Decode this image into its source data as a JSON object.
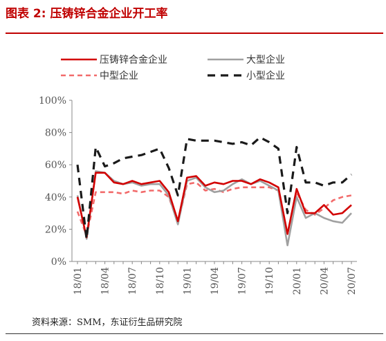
{
  "header": {
    "title": "图表 2:  压铸锌合金企业开工率"
  },
  "footer": {
    "source": "资料来源：SMM，东证衍生品研究院"
  },
  "colors": {
    "title": "#c00000",
    "overall": "#d20000",
    "large": "#a0a0a0",
    "medium": "#f26a6a",
    "small": "#1a1a1a"
  },
  "chart_data": {
    "type": "line",
    "title": "",
    "ylim": [
      0,
      100
    ],
    "y_ticks": [
      "0%",
      "20%",
      "40%",
      "60%",
      "80%",
      "100%"
    ],
    "y_tick_values": [
      0,
      20,
      40,
      60,
      80,
      100
    ],
    "x_tick_labels": [
      "18/01",
      "18/04",
      "18/07",
      "18/10",
      "19/01",
      "19/04",
      "19/07",
      "19/10",
      "20/01",
      "20/04",
      "20/07"
    ],
    "x_tick_index": [
      0,
      3,
      6,
      9,
      12,
      15,
      18,
      21,
      24,
      27,
      30
    ],
    "x_count": 31,
    "legend_position": "top",
    "series": [
      {
        "key": "overall",
        "name": "压铸锌合金企业",
        "style": "solid",
        "values": [
          40,
          15,
          55,
          55,
          49,
          48,
          50,
          48,
          49,
          50,
          43,
          25,
          52,
          53,
          47,
          49,
          48,
          50,
          50,
          48,
          51,
          49,
          46,
          17,
          45,
          30,
          30,
          35,
          29,
          30,
          35
        ]
      },
      {
        "key": "large",
        "name": "大型企业",
        "style": "solid",
        "values": [
          41,
          14,
          56,
          55,
          50,
          48,
          49,
          47,
          48,
          48,
          41,
          23,
          50,
          52,
          46,
          43,
          44,
          48,
          51,
          48,
          50,
          47,
          44,
          10,
          40,
          27,
          30,
          27,
          25,
          24,
          30
        ]
      },
      {
        "key": "medium",
        "name": "中型企业",
        "style": "dashed",
        "values": [
          31,
          16,
          43,
          43,
          43,
          42,
          44,
          43,
          44,
          44,
          40,
          24,
          48,
          49,
          44,
          45,
          43,
          45,
          46,
          46,
          46,
          46,
          44,
          17,
          43,
          32,
          29,
          33,
          38,
          40,
          41
        ]
      },
      {
        "key": "small",
        "name": "小型企业",
        "style": "dashed-heavy",
        "values": [
          60,
          14,
          71,
          59,
          61,
          64,
          65,
          66,
          68,
          70,
          58,
          41,
          76,
          75,
          75,
          75,
          74,
          73,
          74,
          72,
          77,
          74,
          70,
          30,
          71,
          49,
          49,
          47,
          49,
          49,
          54
        ]
      }
    ]
  }
}
